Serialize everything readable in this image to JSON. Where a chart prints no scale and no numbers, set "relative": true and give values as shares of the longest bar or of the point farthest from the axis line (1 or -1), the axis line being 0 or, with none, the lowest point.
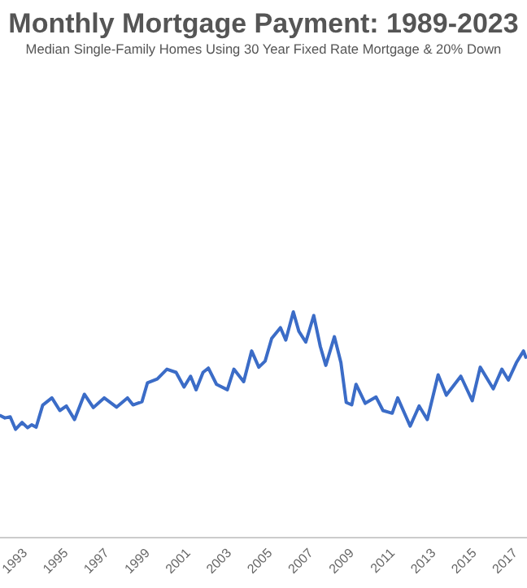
{
  "chart_data": {
    "type": "line",
    "title": "Monthly Mortgage Payment: 1989-2023",
    "subtitle": "Median Single-Family Homes Using 30 Year Fixed Rate Mortgage & 20% Down",
    "relative": true,
    "xlim": [
      1992.2,
      2018
    ],
    "xticks": [
      1993,
      1995,
      1997,
      1999,
      2001,
      2003,
      2005,
      2007,
      2009,
      2011,
      2013,
      2015,
      2017
    ],
    "series": [
      {
        "color": "#3b6cc7",
        "x": [
          1992.22,
          1992.44,
          1992.7,
          1992.96,
          1993.28,
          1993.55,
          1993.75,
          1993.97,
          1994.29,
          1994.74,
          1995.13,
          1995.45,
          1995.85,
          1996.33,
          1996.77,
          1997.3,
          1997.91,
          1998.44,
          1998.71,
          1999.15,
          1999.42,
          1999.9,
          2000.37,
          2000.82,
          2001.21,
          2001.53,
          2001.8,
          2002.14,
          2002.4,
          2002.8,
          2003.33,
          2003.65,
          2004.13,
          2004.52,
          2004.87,
          2005.18,
          2005.5,
          2005.93,
          2006.19,
          2006.56,
          2006.83,
          2007.17,
          2007.56,
          2007.88,
          2008.15,
          2008.57,
          2008.89,
          2009.15,
          2009.42,
          2009.63,
          2010.08,
          2010.61,
          2010.95,
          2011.4,
          2011.67,
          2012.28,
          2012.72,
          2013.12,
          2013.65,
          2014.05,
          2014.76,
          2015.32,
          2015.71,
          2016.35,
          2016.77,
          2017.09,
          2017.48,
          2017.83,
          2017.94
        ],
        "values": [
          0.54,
          0.53,
          0.535,
          0.48,
          0.51,
          0.487,
          0.5,
          0.489,
          0.587,
          0.619,
          0.563,
          0.583,
          0.523,
          0.635,
          0.576,
          0.619,
          0.578,
          0.619,
          0.588,
          0.602,
          0.686,
          0.703,
          0.746,
          0.732,
          0.667,
          0.715,
          0.655,
          0.732,
          0.751,
          0.679,
          0.655,
          0.746,
          0.691,
          0.827,
          0.755,
          0.782,
          0.882,
          0.93,
          0.875,
          1,
          0.914,
          0.866,
          0.984,
          0.847,
          0.763,
          0.89,
          0.775,
          0.599,
          0.588,
          0.679,
          0.595,
          0.623,
          0.563,
          0.551,
          0.619,
          0.494,
          0.583,
          0.523,
          0.721,
          0.631,
          0.715,
          0.606,
          0.755,
          0.659,
          0.746,
          0.698,
          0.775,
          0.827,
          0.799
        ]
      }
    ]
  }
}
